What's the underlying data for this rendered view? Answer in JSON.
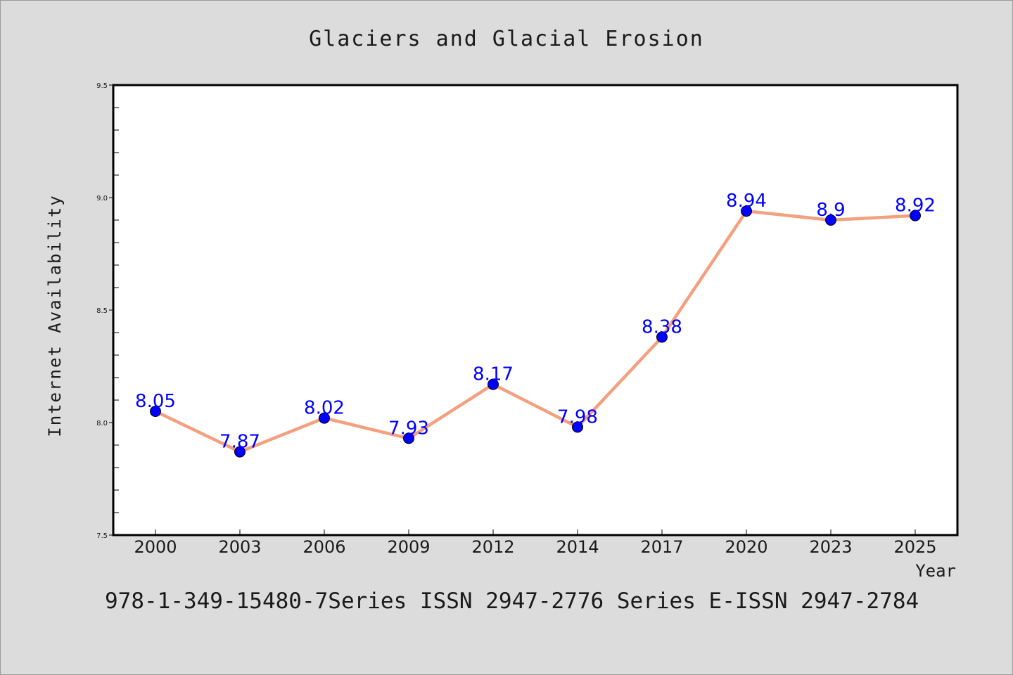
{
  "chart_data": {
    "type": "line",
    "title": "Glaciers and Glacial Erosion",
    "xlabel": "Year",
    "ylabel": "Internet Availability",
    "categories": [
      "2000",
      "2003",
      "2006",
      "2009",
      "2012",
      "2014",
      "2017",
      "2020",
      "2023",
      "2025"
    ],
    "values": [
      8.05,
      7.87,
      8.02,
      7.93,
      8.17,
      7.98,
      8.38,
      8.94,
      8.9,
      8.92
    ],
    "data_labels": [
      "8.05",
      "7.87",
      "8.02",
      "7.93",
      "8.17",
      "7.98",
      "8.38",
      "8.94",
      "8.9",
      "8.92"
    ],
    "ylim": [
      7.5,
      9.5
    ],
    "yticks": [
      "7.5",
      "8.0",
      "8.5",
      "9.0",
      "9.5"
    ],
    "grid": false,
    "legend": "none",
    "colors": {
      "line": "#f4a07f",
      "marker": "#0000ff",
      "label": "#0000ff",
      "background": "#dcdcdc",
      "plot_background": "#ffffff"
    }
  },
  "footer": {
    "text": "978-1-349-15480-7Series ISSN 2947-2776 Series E-ISSN 2947-2784"
  }
}
